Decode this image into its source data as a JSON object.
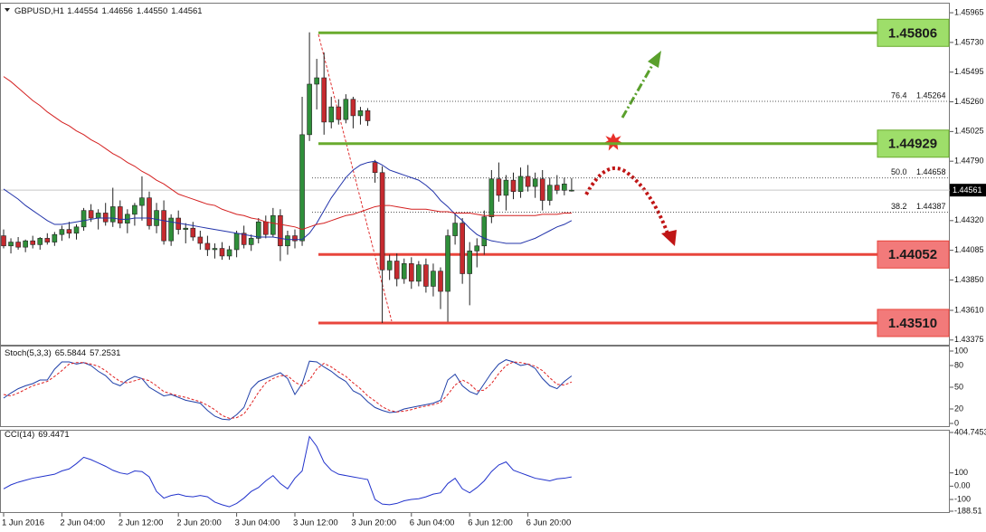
{
  "chart_data": [
    {
      "type": "candlestick",
      "title": "GBPUSD,H1",
      "last_labels": [
        "1.44554",
        "1.44656",
        "1.44550",
        "1.44561"
      ],
      "categories": [
        "1 Jun 2016",
        null,
        null,
        null,
        null,
        null,
        null,
        null,
        "2 Jun 04:00",
        null,
        null,
        null,
        null,
        null,
        null,
        null,
        "2 Jun 12:00",
        null,
        null,
        null,
        null,
        null,
        null,
        null,
        "2 Jun 20:00",
        null,
        null,
        null,
        null,
        null,
        null,
        null,
        "3 Jun 04:00",
        null,
        null,
        null,
        null,
        null,
        null,
        null,
        "3 Jun 12:00",
        null,
        null,
        null,
        null,
        null,
        null,
        null,
        "3 Jun 20:00",
        null,
        null,
        null,
        null,
        null,
        null,
        null,
        "6 Jun 04:00",
        null,
        null,
        null,
        null,
        null,
        null,
        null,
        "6 Jun 12:00",
        null,
        null,
        null,
        null,
        null,
        null,
        null,
        "6 Jun 20:00",
        null,
        null,
        null,
        null,
        null,
        null
      ],
      "open": [
        1.442,
        1.4412,
        1.4415,
        1.4411,
        1.4416,
        1.4413,
        1.4418,
        1.4415,
        1.4421,
        1.4425,
        1.4422,
        1.4427,
        1.444,
        1.4434,
        1.4438,
        1.4431,
        1.4443,
        1.443,
        1.4437,
        1.4444,
        1.445,
        1.4428,
        1.444,
        1.4416,
        1.4434,
        1.4425,
        1.4426,
        1.4419,
        1.4414,
        1.4409,
        1.441,
        1.4404,
        1.4409,
        1.4422,
        1.4413,
        1.4418,
        1.4431,
        1.4421,
        1.4436,
        1.4412,
        1.442,
        1.4416,
        1.45,
        1.454,
        1.4545,
        1.451,
        1.4522,
        1.4512,
        1.4528,
        1.4515,
        1.4519,
        1.4478,
        1.447,
        1.4393,
        1.44,
        1.4386,
        1.4398,
        1.4384,
        1.4397,
        1.438,
        1.4392,
        1.4376,
        1.442,
        1.443,
        1.439,
        1.4408,
        1.4412,
        1.4435,
        1.4465,
        1.4452,
        1.4464,
        1.4455,
        1.4467,
        1.4459,
        1.4465,
        1.4448,
        1.446,
        1.4456,
        1.44554
      ],
      "high": [
        1.4425,
        1.4418,
        1.4419,
        1.4417,
        1.442,
        1.4419,
        1.4422,
        1.4423,
        1.4428,
        1.4431,
        1.4429,
        1.4442,
        1.4445,
        1.4441,
        1.4446,
        1.4458,
        1.4448,
        1.4441,
        1.4446,
        1.4467,
        1.4455,
        1.4446,
        1.4448,
        1.4437,
        1.444,
        1.443,
        1.4431,
        1.4424,
        1.442,
        1.4414,
        1.4415,
        1.4412,
        1.4424,
        1.4428,
        1.4421,
        1.4434,
        1.4436,
        1.4442,
        1.4441,
        1.4424,
        1.4425,
        1.453,
        1.4581,
        1.456,
        1.4565,
        1.453,
        1.4528,
        1.4532,
        1.453,
        1.4522,
        1.4521,
        1.448,
        1.4475,
        1.4405,
        1.4406,
        1.4402,
        1.4403,
        1.44,
        1.4402,
        1.4398,
        1.4395,
        1.4425,
        1.4438,
        1.4434,
        1.4415,
        1.4418,
        1.444,
        1.4472,
        1.4478,
        1.4468,
        1.447,
        1.4474,
        1.4476,
        1.447,
        1.4472,
        1.4466,
        1.4468,
        1.4466,
        1.44656
      ],
      "low": [
        1.441,
        1.4406,
        1.4409,
        1.4407,
        1.441,
        1.4409,
        1.4413,
        1.4412,
        1.4416,
        1.4418,
        1.4417,
        1.4424,
        1.4431,
        1.4425,
        1.4428,
        1.4427,
        1.4426,
        1.4422,
        1.4428,
        1.4432,
        1.4425,
        1.4422,
        1.4413,
        1.4412,
        1.4421,
        1.4414,
        1.4416,
        1.4409,
        1.4404,
        1.4402,
        1.4401,
        1.4401,
        1.4403,
        1.441,
        1.4408,
        1.4414,
        1.4418,
        1.4419,
        1.44,
        1.4405,
        1.441,
        1.4412,
        1.4495,
        1.452,
        1.45,
        1.4505,
        1.4508,
        1.4509,
        1.4505,
        1.4508,
        1.4507,
        1.4462,
        1.4351,
        1.4385,
        1.438,
        1.4382,
        1.4378,
        1.438,
        1.4375,
        1.4372,
        1.4362,
        1.4352,
        1.4413,
        1.4382,
        1.4365,
        1.4395,
        1.4405,
        1.443,
        1.4447,
        1.444,
        1.4449,
        1.445,
        1.4455,
        1.445,
        1.444,
        1.4444,
        1.4453,
        1.4452,
        1.4455
      ],
      "close": [
        1.4412,
        1.4415,
        1.4411,
        1.4416,
        1.4413,
        1.4418,
        1.4415,
        1.4421,
        1.4425,
        1.4422,
        1.4427,
        1.444,
        1.4434,
        1.4438,
        1.4431,
        1.4443,
        1.443,
        1.4437,
        1.4444,
        1.445,
        1.4428,
        1.444,
        1.4416,
        1.4434,
        1.4425,
        1.4426,
        1.4419,
        1.4414,
        1.4409,
        1.441,
        1.4404,
        1.4409,
        1.4422,
        1.4413,
        1.4418,
        1.4431,
        1.4421,
        1.4436,
        1.4412,
        1.442,
        1.4416,
        1.45,
        1.454,
        1.4545,
        1.451,
        1.4522,
        1.4512,
        1.4528,
        1.4515,
        1.4519,
        1.4511,
        1.447,
        1.4393,
        1.44,
        1.4386,
        1.4398,
        1.4384,
        1.4397,
        1.438,
        1.4392,
        1.4376,
        1.442,
        1.443,
        1.439,
        1.4408,
        1.4412,
        1.4435,
        1.4465,
        1.4452,
        1.4464,
        1.4455,
        1.4467,
        1.4459,
        1.4465,
        1.4448,
        1.446,
        1.4456,
        1.4461,
        1.44561
      ],
      "up_color": "#2f8f3a",
      "down_color": "#c62a2f",
      "lines": [
        {
          "color": "#2233aa",
          "values": [
            1.4457,
            1.4453,
            1.4449,
            1.4444,
            1.444,
            1.4436,
            1.4432,
            1.4429,
            1.4429,
            1.443,
            1.4431,
            1.4432,
            1.4433,
            1.4434,
            1.4434,
            1.4434,
            1.4433,
            1.4433,
            1.4434,
            1.4434,
            1.4434,
            1.4433,
            1.4432,
            1.4431,
            1.443,
            1.4429,
            1.4428,
            1.4427,
            1.4426,
            1.4425,
            1.4424,
            1.4423,
            1.4422,
            1.4421,
            1.442,
            1.4419,
            1.4419,
            1.4419,
            1.4418,
            1.4417,
            1.4417,
            1.4417,
            1.4422,
            1.443,
            1.444,
            1.445,
            1.4458,
            1.4466,
            1.4472,
            1.4476,
            1.4478,
            1.4479,
            1.4476,
            1.4472,
            1.447,
            1.4468,
            1.4466,
            1.4464,
            1.446,
            1.4455,
            1.4448,
            1.4443,
            1.4437,
            1.4432,
            1.4426,
            1.4421,
            1.4418,
            1.4416,
            1.4415,
            1.4414,
            1.4414,
            1.4414,
            1.4416,
            1.4418,
            1.4421,
            1.4424,
            1.4427,
            1.4429,
            1.4432
          ]
        },
        {
          "color": "#d42020",
          "values": [
            1.4546,
            1.4542,
            1.4537,
            1.4532,
            1.4527,
            1.4523,
            1.4518,
            1.4514,
            1.451,
            1.4507,
            1.4503,
            1.45,
            1.4496,
            1.4493,
            1.4489,
            1.4485,
            1.4482,
            1.4478,
            1.4475,
            1.4471,
            1.4468,
            1.4464,
            1.4461,
            1.4457,
            1.4453,
            1.4451,
            1.4449,
            1.4447,
            1.4445,
            1.4444,
            1.4441,
            1.4439,
            1.4437,
            1.4436,
            1.4434,
            1.4433,
            1.4431,
            1.443,
            1.4429,
            1.4428,
            1.4427,
            1.4425,
            1.4427,
            1.4429,
            1.443,
            1.4432,
            1.4434,
            1.4436,
            1.4437,
            1.4439,
            1.4441,
            1.4443,
            1.4444,
            1.4444,
            1.4443,
            1.4442,
            1.4441,
            1.4441,
            1.4441,
            1.444,
            1.4439,
            1.4439,
            1.4438,
            1.4438,
            1.4438,
            1.4437,
            1.4436,
            1.4436,
            1.4436,
            1.4436,
            1.4436,
            1.4436,
            1.4436,
            1.4436,
            1.4437,
            1.4437,
            1.4437,
            1.4438,
            1.4438
          ]
        }
      ],
      "ylim": [
        1.43345,
        1.4603
      ],
      "yticks": [
        1.45965,
        {
          "value": 1.4573,
          "label": "1.45730"
        },
        1.45495,
        {
          "value": 1.4526,
          "label": "1.45260"
        },
        1.45025,
        {
          "value": 1.4479,
          "label": "1.44790"
        },
        {
          "value": 1.4432,
          "label": "1.44320"
        },
        1.44085,
        {
          "value": 1.4385,
          "label": "1.43850"
        },
        {
          "value": 1.4361,
          "label": "1.43610"
        },
        1.43375
      ],
      "levels": [
        {
          "value": 1.45806,
          "color": "#6aab2e",
          "box_color": "#9ede6a"
        },
        {
          "value": 1.44929,
          "color": "#6aab2e",
          "box_color": "#9ede6a"
        },
        {
          "value": 1.44052,
          "color": "#e8453c",
          "box_color": "#f27a7a"
        },
        {
          "value": 1.4351,
          "label": "1.43510",
          "color": "#e8453c",
          "box_color": "#f27a7a"
        }
      ],
      "fib_levels": [
        {
          "label": "76.4",
          "value": 1.45264
        },
        {
          "label": "50.0",
          "value": 1.44658
        },
        {
          "label": "38.2",
          "value": 1.44387
        }
      ]
    },
    {
      "type": "line",
      "title": "Stoch(5,3,3)",
      "series": [
        {
          "color": "#1f3fa8",
          "dash": false,
          "values": [
            35,
            42,
            48,
            52,
            55,
            60,
            60,
            75,
            85,
            85,
            82,
            84,
            80,
            72,
            66,
            56,
            52,
            60,
            65,
            62,
            50,
            44,
            38,
            40,
            36,
            32,
            30,
            28,
            18,
            10,
            6,
            5,
            12,
            22,
            48,
            58,
            62,
            66,
            70,
            62,
            40,
            55,
            86,
            85,
            78,
            72,
            64,
            58,
            45,
            40,
            30,
            22,
            18,
            15,
            16,
            20,
            22,
            24,
            26,
            28,
            32,
            60,
            68,
            52,
            44,
            40,
            55,
            70,
            82,
            88,
            85,
            80,
            82,
            76,
            62,
            52,
            48,
            58,
            65.5844
          ]
        },
        {
          "color": "#e02020",
          "dash": true,
          "values": [
            40,
            38,
            42,
            47,
            52,
            55,
            58,
            65,
            73,
            82,
            84,
            84,
            82,
            79,
            73,
            65,
            58,
            56,
            59,
            62,
            59,
            52,
            44,
            41,
            38,
            36,
            33,
            30,
            25,
            19,
            11,
            7,
            8,
            13,
            27,
            43,
            56,
            62,
            66,
            66,
            57,
            52,
            60,
            75,
            83,
            78,
            71,
            65,
            56,
            48,
            38,
            31,
            23,
            18,
            16,
            17,
            19,
            22,
            24,
            26,
            29,
            40,
            53,
            60,
            55,
            45,
            46,
            55,
            69,
            80,
            85,
            84,
            82,
            79,
            73,
            63,
            54,
            53,
            57.2531
          ]
        }
      ],
      "ylim": [
        0,
        100
      ],
      "yticks": [
        100,
        80,
        50,
        20,
        0
      ]
    },
    {
      "type": "line",
      "title": "CCI(14)",
      "series": [
        {
          "color": "#2233cc",
          "dash": false,
          "values": [
            -20,
            10,
            30,
            45,
            60,
            70,
            80,
            90,
            115,
            130,
            170,
            218,
            200,
            175,
            150,
            120,
            100,
            90,
            115,
            110,
            70,
            -40,
            -90,
            -70,
            -60,
            -75,
            -80,
            -70,
            -80,
            -120,
            -140,
            -155,
            -130,
            -90,
            -40,
            -10,
            40,
            80,
            20,
            -20,
            60,
            115,
            374,
            300,
            180,
            120,
            90,
            80,
            70,
            60,
            50,
            -100,
            -135,
            -140,
            -130,
            -110,
            -100,
            -95,
            -80,
            -60,
            -50,
            20,
            60,
            -20,
            -50,
            -10,
            40,
            110,
            160,
            183,
            120,
            100,
            80,
            60,
            50,
            40,
            55,
            60,
            69.4471
          ]
        }
      ],
      "ylim": [
        -188.51,
        404.7453
      ],
      "yticks": [
        404.7453,
        100,
        {
          "value": 0,
          "label": "0.00"
        },
        -100,
        -188.51
      ]
    }
  ]
}
